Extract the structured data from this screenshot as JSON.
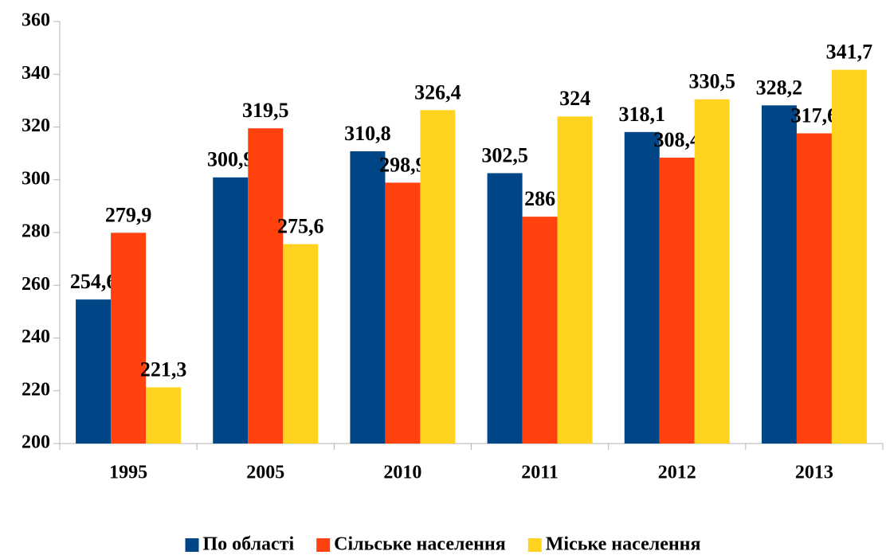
{
  "chart_data": {
    "type": "bar",
    "categories": [
      "1995",
      "2005",
      "2010",
      "2011",
      "2012",
      "2013"
    ],
    "series": [
      {
        "name": "По області",
        "color": "#004586",
        "values": [
          254.6,
          300.9,
          310.8,
          302.5,
          318.1,
          328.2
        ],
        "value_labels": [
          "254,6",
          "300,9",
          "310,8",
          "302,5",
          "318,1",
          "328,2"
        ]
      },
      {
        "name": "Сільське населення",
        "color": "#ff420e",
        "values": [
          279.9,
          319.5,
          298.9,
          286,
          308.4,
          317.6
        ],
        "value_labels": [
          "279,9",
          "319,5",
          "298,9",
          "286",
          "308,4",
          "317,6"
        ]
      },
      {
        "name": "Міське населення",
        "color": "#ffd320",
        "values": [
          221.3,
          275.6,
          326.4,
          324,
          330.5,
          341.7
        ],
        "value_labels": [
          "221,3",
          "275,6",
          "326,4",
          "324",
          "330,5",
          "341,7"
        ]
      }
    ],
    "ylim": [
      200,
      360
    ],
    "yticks": [
      200,
      220,
      240,
      260,
      280,
      300,
      320,
      340,
      360
    ],
    "grid": false,
    "legend": "bottom"
  }
}
